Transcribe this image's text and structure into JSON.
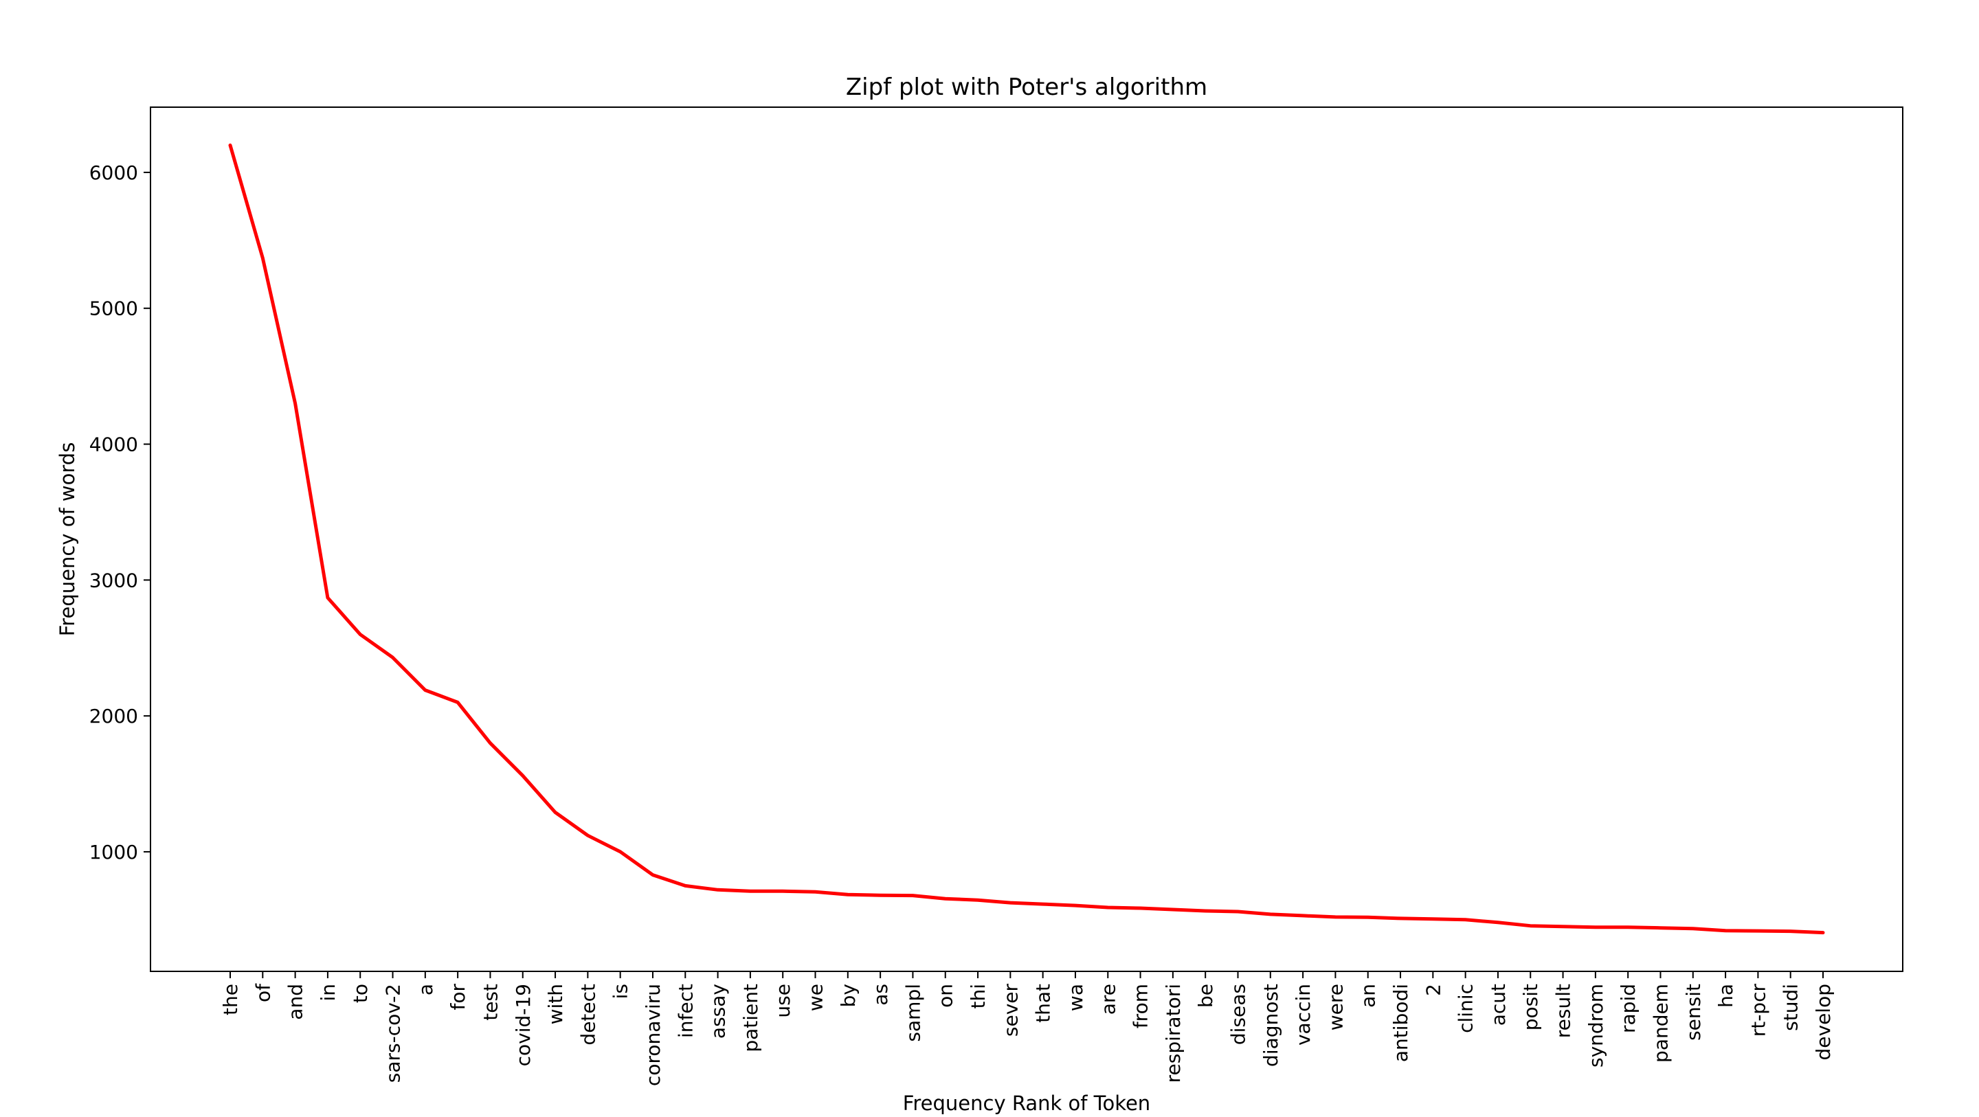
{
  "chart_data": {
    "type": "line",
    "title": "Zipf plot with Poter's algorithm",
    "xlabel": "Frequency Rank of Token",
    "ylabel": "Frequency of words",
    "ylim": [
      120,
      6480
    ],
    "y_ticks": [
      1000,
      2000,
      3000,
      4000,
      5000,
      6000
    ],
    "grid": false,
    "line_color": "#ff0000",
    "categories": [
      "the",
      "of",
      "and",
      "in",
      "to",
      "sars-cov-2",
      "a",
      "for",
      "test",
      "covid-19",
      "with",
      "detect",
      "is",
      "coronaviru",
      "infect",
      "assay",
      "patient",
      "use",
      "we",
      "by",
      "as",
      "sampl",
      "on",
      "thi",
      "sever",
      "that",
      "wa",
      "are",
      "from",
      "respiratori",
      "be",
      "diseas",
      "diagnost",
      "vaccin",
      "were",
      "an",
      "antibodi",
      "2",
      "clinic",
      "acut",
      "posit",
      "result",
      "syndrom",
      "rapid",
      "pandem",
      "sensit",
      "ha",
      "rt-pcr",
      "studi",
      "develop"
    ],
    "values": [
      6200,
      5370,
      4300,
      2870,
      2600,
      2430,
      2190,
      2100,
      1800,
      1560,
      1290,
      1120,
      1000,
      830,
      750,
      720,
      710,
      710,
      705,
      685,
      680,
      678,
      655,
      645,
      625,
      615,
      605,
      590,
      585,
      575,
      565,
      560,
      540,
      530,
      520,
      518,
      510,
      505,
      500,
      480,
      455,
      450,
      445,
      445,
      440,
      435,
      420,
      418,
      415,
      405
    ]
  }
}
